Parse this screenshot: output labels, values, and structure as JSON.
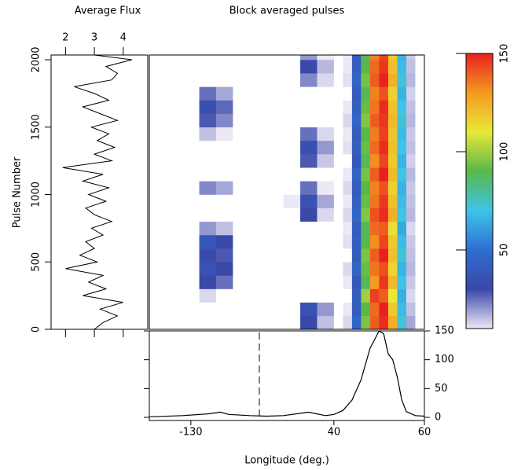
{
  "chart_data": [
    {
      "type": "line",
      "title": "Average Flux",
      "ylabel": "Pulse Number",
      "color": "#000000",
      "pulse_numbers": [
        0,
        50,
        100,
        150,
        200,
        250,
        300,
        350,
        400,
        450,
        500,
        550,
        600,
        650,
        700,
        750,
        800,
        850,
        900,
        950,
        1000,
        1050,
        1100,
        1150,
        1200,
        1250,
        1300,
        1350,
        1400,
        1450,
        1500,
        1550,
        1600,
        1650,
        1700,
        1750,
        1800,
        1850,
        1900,
        1950,
        2000,
        2035
      ],
      "values": [
        3.0,
        3.3,
        3.8,
        3.2,
        4.0,
        2.6,
        3.4,
        2.8,
        3.3,
        2.0,
        3.1,
        2.5,
        3.0,
        2.7,
        3.3,
        2.9,
        3.6,
        3.0,
        2.7,
        3.4,
        2.8,
        3.5,
        2.6,
        3.3,
        1.9,
        3.6,
        3.0,
        3.7,
        3.1,
        3.5,
        2.9,
        3.8,
        3.2,
        2.6,
        3.5,
        3.0,
        2.3,
        3.6,
        3.8,
        3.4,
        4.3,
        3.0
      ],
      "xlim": [
        1.5,
        4.85
      ],
      "xticks": [
        2,
        3,
        4
      ],
      "ylim": [
        0,
        2035
      ],
      "yticks": [
        0,
        500,
        1000,
        1500,
        2000
      ]
    },
    {
      "type": "heatmap",
      "title": "Block averaged pulses",
      "xbins": [
        -180,
        -160,
        -140,
        -120,
        -100,
        -80,
        -60,
        -40,
        -20,
        0,
        20,
        40,
        42,
        44,
        46,
        48,
        50,
        52,
        54,
        56,
        58,
        60
      ],
      "ybins": [
        0,
        100,
        200,
        300,
        400,
        500,
        600,
        700,
        800,
        900,
        1000,
        1100,
        1200,
        1300,
        1400,
        1500,
        1600,
        1700,
        1800,
        1900,
        2000,
        2035
      ],
      "z": [
        [
          0,
          0,
          0,
          0,
          0,
          0,
          0,
          0,
          0,
          30,
          15,
          0,
          12,
          45,
          95,
          140,
          148,
          125,
          72,
          18,
          0
        ],
        [
          0,
          0,
          0,
          0,
          0,
          0,
          0,
          0,
          5,
          35,
          20,
          0,
          10,
          40,
          90,
          138,
          150,
          118,
          68,
          15,
          0
        ],
        [
          0,
          0,
          0,
          12,
          8,
          0,
          0,
          0,
          0,
          0,
          0,
          0,
          8,
          42,
          100,
          145,
          140,
          110,
          65,
          12,
          0
        ],
        [
          0,
          0,
          0,
          30,
          25,
          0,
          0,
          0,
          0,
          0,
          0,
          0,
          10,
          38,
          88,
          130,
          146,
          122,
          70,
          14,
          0
        ],
        [
          0,
          0,
          0,
          35,
          30,
          0,
          0,
          0,
          0,
          0,
          0,
          0,
          12,
          44,
          92,
          136,
          142,
          115,
          66,
          16,
          0
        ],
        [
          0,
          0,
          0,
          32,
          28,
          0,
          0,
          0,
          0,
          5,
          0,
          0,
          9,
          40,
          95,
          140,
          150,
          120,
          72,
          15,
          0
        ],
        [
          0,
          0,
          0,
          38,
          30,
          0,
          0,
          0,
          0,
          0,
          0,
          0,
          11,
          42,
          90,
          132,
          144,
          118,
          68,
          14,
          0
        ],
        [
          0,
          0,
          0,
          20,
          15,
          0,
          0,
          0,
          0,
          0,
          0,
          0,
          10,
          40,
          88,
          138,
          140,
          112,
          64,
          12,
          0
        ],
        [
          0,
          0,
          0,
          0,
          0,
          0,
          0,
          0,
          8,
          30,
          12,
          0,
          12,
          46,
          96,
          142,
          148,
          124,
          70,
          16,
          0
        ],
        [
          0,
          0,
          0,
          0,
          0,
          0,
          0,
          0,
          10,
          35,
          18,
          0,
          10,
          42,
          92,
          136,
          146,
          120,
          68,
          15,
          0
        ],
        [
          0,
          0,
          0,
          22,
          18,
          0,
          0,
          0,
          5,
          25,
          10,
          0,
          12,
          40,
          90,
          134,
          142,
          116,
          66,
          14,
          0
        ],
        [
          0,
          0,
          0,
          8,
          5,
          0,
          0,
          0,
          0,
          0,
          0,
          0,
          10,
          44,
          94,
          140,
          150,
          122,
          70,
          16,
          0
        ],
        [
          0,
          0,
          0,
          0,
          0,
          0,
          0,
          0,
          6,
          28,
          14,
          0,
          9,
          38,
          88,
          132,
          144,
          118,
          66,
          13,
          0
        ],
        [
          0,
          0,
          0,
          0,
          0,
          0,
          0,
          0,
          8,
          34,
          20,
          0,
          11,
          42,
          92,
          138,
          148,
          120,
          70,
          15,
          0
        ],
        [
          0,
          0,
          0,
          15,
          10,
          0,
          0,
          0,
          5,
          25,
          12,
          0,
          10,
          40,
          90,
          135,
          145,
          119,
          68,
          14,
          0
        ],
        [
          0,
          0,
          0,
          28,
          22,
          0,
          0,
          0,
          0,
          0,
          0,
          0,
          12,
          45,
          96,
          140,
          146,
          122,
          72,
          16,
          0
        ],
        [
          0,
          0,
          0,
          34,
          26,
          0,
          0,
          0,
          0,
          0,
          0,
          0,
          10,
          42,
          92,
          136,
          148,
          120,
          70,
          15,
          0
        ],
        [
          0,
          0,
          0,
          25,
          18,
          0,
          0,
          0,
          0,
          0,
          0,
          0,
          9,
          40,
          88,
          134,
          142,
          116,
          66,
          13,
          0
        ],
        [
          0,
          0,
          0,
          0,
          0,
          0,
          0,
          0,
          6,
          22,
          12,
          0,
          11,
          44,
          94,
          140,
          150,
          124,
          72,
          16,
          0
        ],
        [
          0,
          0,
          0,
          0,
          0,
          0,
          0,
          0,
          8,
          30,
          16,
          0,
          10,
          42,
          90,
          138,
          146,
          120,
          68,
          15,
          0
        ],
        [
          0,
          0,
          0,
          0,
          0,
          0,
          0,
          0,
          5,
          20,
          10,
          0,
          10,
          40,
          88,
          134,
          144,
          118,
          66,
          14,
          0
        ]
      ],
      "xlim": [
        -180,
        60
      ],
      "ylim": [
        0,
        2035
      ],
      "zlim": [
        10,
        150
      ],
      "zticks": [
        50,
        100,
        150
      ],
      "colorscale": [
        "#ece8f6",
        "#3a48a8",
        "#2e6ed2",
        "#3ec4e8",
        "#58b84a",
        "#e8e838",
        "#f49a20",
        "#e82020"
      ]
    },
    {
      "type": "line",
      "xlabel": "Longitude (deg.)",
      "color": "#000000",
      "x": [
        -180,
        -140,
        -110,
        -95,
        -85,
        -60,
        -40,
        -20,
        0,
        10,
        20,
        30,
        40,
        42,
        44,
        46,
        48,
        50,
        51,
        52,
        53,
        54,
        55,
        56,
        58,
        60
      ],
      "values": [
        1,
        3,
        6,
        9,
        5,
        3,
        2,
        3,
        7,
        9,
        6,
        3,
        5,
        12,
        30,
        65,
        120,
        150,
        145,
        110,
        100,
        70,
        30,
        10,
        3,
        2
      ],
      "xlim": [
        -180,
        60
      ],
      "xticks": [
        -130,
        40,
        60
      ],
      "ylim": [
        0,
        150
      ],
      "yticks": [
        0,
        50,
        100,
        150
      ]
    }
  ]
}
